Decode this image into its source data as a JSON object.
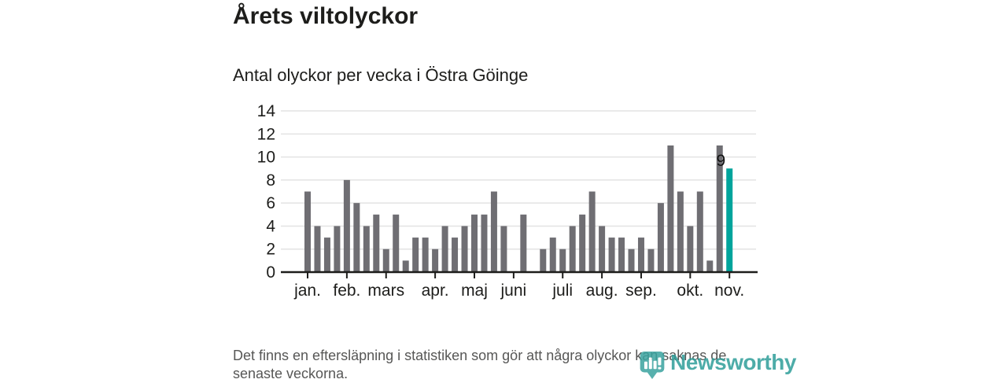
{
  "header": {
    "title": "Årets viltolyckor",
    "subtitle": "Antal olyckor per vecka i Östra Göinge"
  },
  "footer": {
    "note_lines": [
      "Det finns en eftersläpning i statistiken som gör att några olyckor kan saknas de",
      "senaste veckorna."
    ],
    "logo_text": "Newsworthy"
  },
  "colors": {
    "bar": "#6f6e73",
    "highlight": "#00a49c",
    "gridline": "#e3e3e3",
    "axis": "#1d1d1b",
    "label": "#1d1d1b",
    "annotation": "#111111",
    "footnote": "#575756",
    "logo": "#2f9e9a"
  },
  "chart_data": {
    "type": "bar",
    "title": "Årets viltolyckor",
    "subtitle": "Antal olyckor per vecka i Östra Göinge",
    "x_unit": "vecka",
    "categories": [
      1,
      2,
      3,
      4,
      5,
      6,
      7,
      8,
      9,
      10,
      11,
      12,
      13,
      14,
      15,
      16,
      17,
      18,
      19,
      20,
      21,
      22,
      23,
      24,
      25,
      26,
      27,
      28,
      29,
      30,
      31,
      32,
      33,
      34,
      35,
      36,
      37,
      38,
      39,
      40,
      41,
      42,
      43,
      44
    ],
    "values": [
      7,
      4,
      3,
      4,
      8,
      6,
      4,
      5,
      2,
      5,
      1,
      3,
      3,
      2,
      4,
      3,
      4,
      5,
      5,
      7,
      4,
      0,
      5,
      0,
      2,
      3,
      2,
      4,
      5,
      7,
      4,
      3,
      3,
      2,
      3,
      2,
      6,
      11,
      7,
      4,
      7,
      1,
      11,
      9
    ],
    "highlight": {
      "index": 43,
      "value": 9,
      "label": "9"
    },
    "xlabel": "",
    "ylabel": "",
    "ylim": [
      0,
      14
    ],
    "y_ticks": [
      0,
      2,
      4,
      6,
      8,
      10,
      12,
      14
    ],
    "x_ticks": [
      {
        "label": "jan.",
        "index": 0
      },
      {
        "label": "feb.",
        "index": 4
      },
      {
        "label": "mars",
        "index": 8
      },
      {
        "label": "apr.",
        "index": 13
      },
      {
        "label": "maj",
        "index": 17
      },
      {
        "label": "juni",
        "index": 21
      },
      {
        "label": "juli",
        "index": 26
      },
      {
        "label": "aug.",
        "index": 30
      },
      {
        "label": "sep.",
        "index": 34
      },
      {
        "label": "okt.",
        "index": 39
      },
      {
        "label": "nov.",
        "index": 43
      }
    ],
    "grid": true,
    "legend": false
  }
}
